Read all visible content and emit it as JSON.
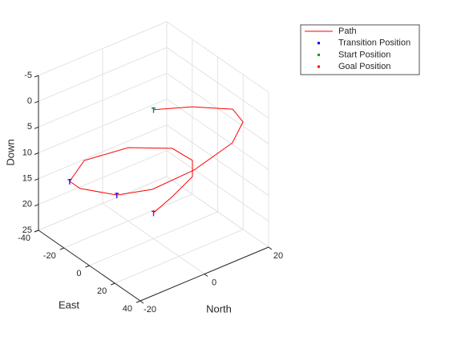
{
  "chart_data": {
    "type": "line3d",
    "xlabel": "North",
    "ylabel": "East",
    "zlabel": "Down",
    "xlim": [
      -20,
      20
    ],
    "xticks": [
      -20,
      0,
      20
    ],
    "ylim": [
      -40,
      40
    ],
    "yticks": [
      -40,
      -20,
      0,
      20,
      40
    ],
    "zlim": [
      -5,
      25
    ],
    "zticks": [
      -5,
      0,
      5,
      10,
      15,
      20,
      25
    ],
    "zdir": "reverse",
    "grid": true,
    "legend": "northeast outside",
    "series": [
      {
        "name": "Path",
        "color": "#ff0000",
        "style": "line",
        "x": [
          0,
          9.8,
          18.4,
          18.3,
          11.8,
          -0.4,
          -11,
          -16.6,
          -19,
          -18.3,
          -8.9,
          4.7,
          14.5,
          16.5,
          13.4,
          6.1,
          0
        ],
        "y": [
          0,
          5.8,
          15.8,
          24.2,
          32.2,
          32.8,
          26.8,
          13.0,
          -9.8,
          -19.8,
          -32,
          -31.7,
          -21.8,
          -11,
          -3.2,
          -0.5,
          0
        ],
        "z": [
          0,
          1,
          2,
          3,
          4,
          6,
          8,
          10,
          12,
          12.5,
          13,
          14,
          15,
          16,
          17,
          18.5,
          20
        ]
      },
      {
        "name": "Transition Position",
        "color": "#0000ff",
        "style": "marker",
        "x": [
          0,
          -16.6,
          -18.3,
          0
        ],
        "y": [
          0,
          13.0,
          -19.8,
          0
        ],
        "z": [
          0,
          10,
          12.5,
          20
        ]
      },
      {
        "name": "Start Position",
        "color": "#00a000",
        "style": "marker",
        "x": [
          0
        ],
        "y": [
          0
        ],
        "z": [
          0
        ]
      },
      {
        "name": "Goal Position",
        "color": "#ff0000",
        "style": "marker",
        "x": [
          0
        ],
        "y": [
          0
        ],
        "z": [
          20
        ]
      }
    ]
  }
}
